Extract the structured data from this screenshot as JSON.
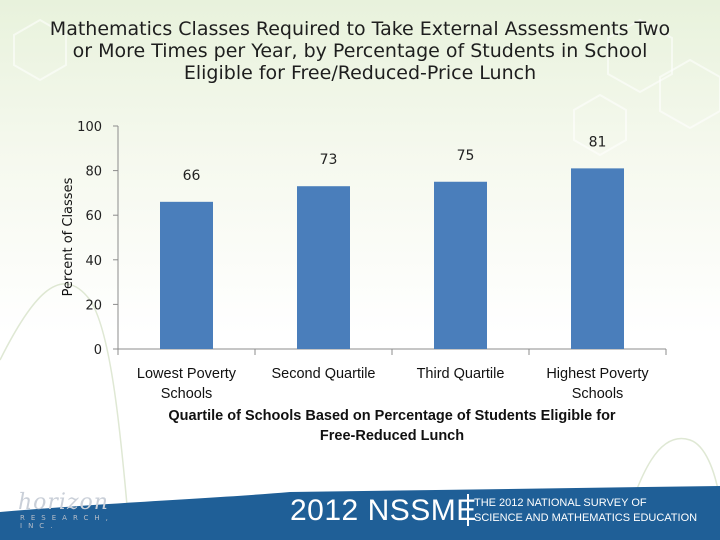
{
  "title_lines": [
    "Mathematics Classes Required to Take External Assessments Two",
    "or More Times per Year, by Percentage of Students in School",
    "Eligible for Free/Reduced-Price Lunch"
  ],
  "chart_data": {
    "type": "bar",
    "title": "Mathematics Classes Required to Take External Assessments Two or More Times per Year, by Percentage of Students in School Eligible for Free/Reduced-Price Lunch",
    "categories": [
      "Lowest Poverty Schools",
      "Second Quartile",
      "Third Quartile",
      "Highest Poverty Schools"
    ],
    "category_label_lines": [
      [
        "Lowest Poverty",
        "Schools"
      ],
      [
        "Second Quartile"
      ],
      [
        "Third Quartile"
      ],
      [
        "Highest Poverty",
        "Schools"
      ]
    ],
    "values": [
      66,
      73,
      75,
      81
    ],
    "data_labels": [
      "66",
      "73",
      "75",
      "81"
    ],
    "ylabel": "Percent of Classes",
    "xlabel": "Quartile of Schools Based on Percentage of Students Eligible for Free-Reduced Lunch",
    "xlabel_lines": [
      "Quartile of Schools Based on Percentage of Students Eligible for",
      "Free-Reduced Lunch"
    ],
    "ylim": [
      0,
      100
    ],
    "yticks": [
      0,
      20,
      40,
      60,
      80,
      100
    ],
    "grid": false,
    "bar_color": "#4a7ebb"
  },
  "footer": {
    "brand": "2012 NSSME",
    "sub_line1": "THE 2012 NATIONAL SURVEY OF",
    "sub_line2": "SCIENCE AND MATHEMATICS EDUCATION",
    "footer_color": "#1f5f97"
  },
  "logo": {
    "word": "horizon",
    "sub": "RESEARCH, INC."
  }
}
